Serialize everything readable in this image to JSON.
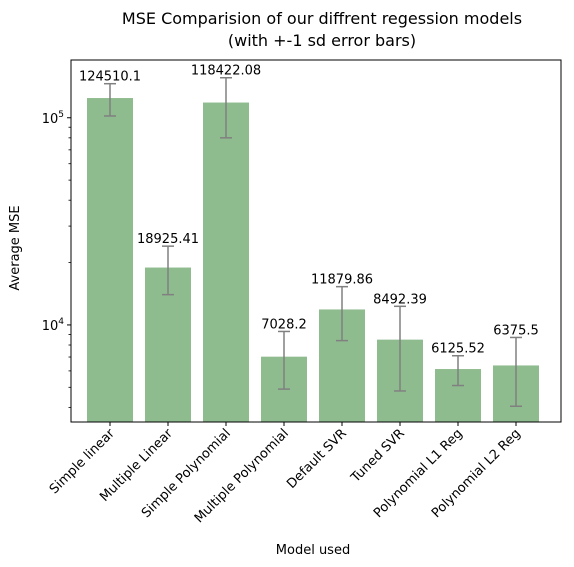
{
  "chart_data": {
    "type": "bar",
    "title_line1": "MSE Comparision of our diffrent regession models",
    "title_line2": "(with +-1 sd error bars)",
    "xlabel": "Model used",
    "ylabel": "Average MSE",
    "yscale": "log",
    "ylim": [
      3400,
      190000
    ],
    "yticks_major": [
      {
        "value": 10000,
        "base": "10",
        "exp": "4"
      },
      {
        "value": 100000,
        "base": "10",
        "exp": "5"
      }
    ],
    "categories": [
      "Simple linear",
      "Multiple Linear",
      "Simple Polynomial",
      "Multiple Polynomial",
      "Default SVR",
      "Tuned SVR",
      "Polynomial L1 Reg",
      "Polynomial L2 Reg"
    ],
    "values": [
      124510.1,
      18925.41,
      118422.08,
      7028.2,
      11879.86,
      8492.39,
      6125.52,
      6375.5
    ],
    "value_labels": [
      "124510.1",
      "18925.41",
      "118422.08",
      "7028.2",
      "11879.86",
      "8492.39",
      "6125.52",
      "6375.5"
    ],
    "error_low": [
      102000,
      14000,
      80000,
      4900,
      8400,
      4800,
      5100,
      4050
    ],
    "error_high": [
      146000,
      24000,
      156000,
      9300,
      15300,
      12300,
      7100,
      8700
    ],
    "bar_color": "#8fbc8f",
    "error_color": "#808080",
    "grid": false,
    "legend": "none"
  }
}
